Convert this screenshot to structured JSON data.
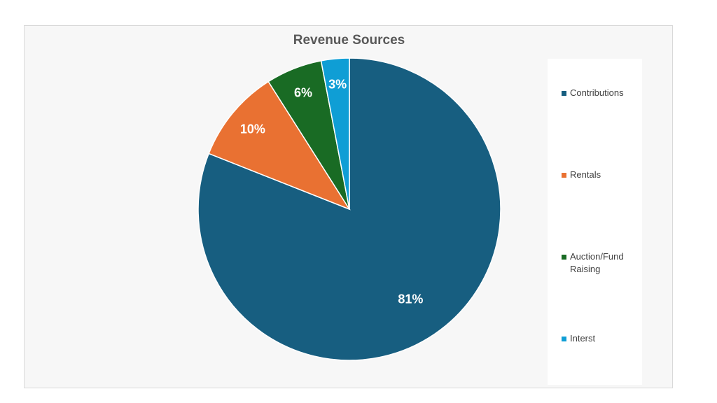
{
  "chart_data": {
    "type": "pie",
    "title": "Revenue Sources",
    "legend_position": "right",
    "slices": [
      {
        "label": "Contributions",
        "value": 81,
        "display": "81%",
        "color": "#175e80"
      },
      {
        "label": "Rentals",
        "value": 10,
        "display": "10%",
        "color": "#e97132"
      },
      {
        "label": "Auction/Fund Raising",
        "value": 6,
        "display": "6%",
        "color": "#196b24"
      },
      {
        "label": "Interst",
        "value": 3,
        "display": "3%",
        "color": "#0f9ed5"
      }
    ]
  }
}
